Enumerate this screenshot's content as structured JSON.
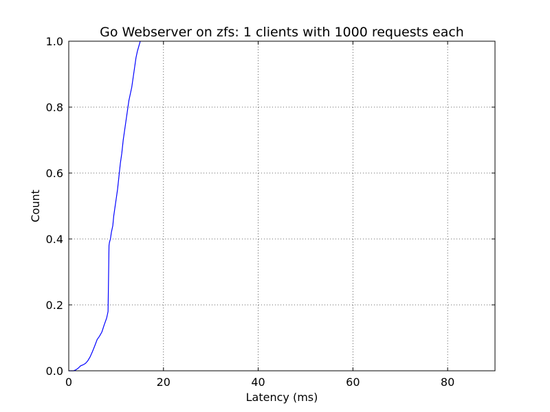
{
  "chart_data": {
    "type": "line",
    "title": "Go Webserver on zfs: 1 clients with 1000 requests each",
    "xlabel": "Latency (ms)",
    "ylabel": "Count",
    "xlim": [
      0,
      90
    ],
    "ylim": [
      0,
      1.0
    ],
    "xticks": [
      0,
      20,
      40,
      60,
      80
    ],
    "xtick_labels": [
      "0",
      "20",
      "40",
      "60",
      "80"
    ],
    "yticks": [
      0.0,
      0.2,
      0.4,
      0.6,
      0.8,
      1.0
    ],
    "ytick_labels": [
      "0.0",
      "0.2",
      "0.4",
      "0.6",
      "0.8",
      "1.0"
    ],
    "grid": true,
    "series": [
      {
        "color": "#0000ff",
        "x": [
          0.0,
          0.5,
          1.0,
          1.5,
          2.0,
          2.5,
          3.0,
          3.5,
          4.0,
          4.5,
          5.0,
          5.5,
          6.0,
          6.5,
          7.0,
          7.5,
          8.0,
          8.3,
          8.5,
          8.6,
          8.8,
          9.0,
          9.3,
          9.5,
          9.8,
          10.0,
          10.3,
          10.6,
          10.9,
          11.2,
          11.5,
          11.8,
          12.1,
          12.4,
          12.7,
          13.0,
          13.3,
          13.6,
          13.9,
          14.2,
          14.5,
          14.8,
          15.0,
          15.1
        ],
        "y": [
          0.0,
          0.0,
          0.0,
          0.003,
          0.008,
          0.015,
          0.018,
          0.022,
          0.03,
          0.042,
          0.058,
          0.076,
          0.095,
          0.105,
          0.118,
          0.14,
          0.16,
          0.18,
          0.38,
          0.39,
          0.4,
          0.42,
          0.44,
          0.47,
          0.5,
          0.52,
          0.55,
          0.59,
          0.63,
          0.66,
          0.7,
          0.73,
          0.76,
          0.79,
          0.82,
          0.84,
          0.86,
          0.89,
          0.92,
          0.95,
          0.97,
          0.985,
          0.995,
          1.0
        ]
      }
    ]
  }
}
